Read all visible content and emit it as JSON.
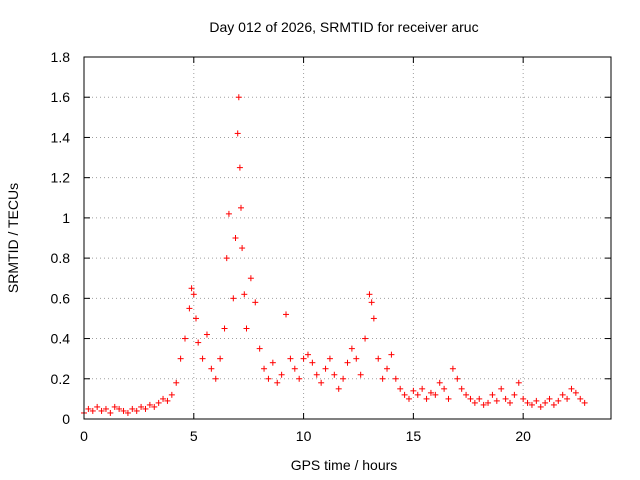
{
  "chart_data": {
    "type": "scatter",
    "title": "Day 012 of 2026, SRMTID for receiver aruc",
    "xlabel": "GPS time / hours",
    "ylabel": "SRMTID / TECUs",
    "xlim": [
      0,
      24
    ],
    "ylim": [
      0,
      1.8
    ],
    "xticks": [
      0,
      5,
      10,
      15,
      20
    ],
    "xtick_labels": [
      "0",
      "5",
      "10",
      "15",
      "20"
    ],
    "yticks": [
      0,
      0.2,
      0.4,
      0.6,
      0.8,
      1.0,
      1.2,
      1.4,
      1.6,
      1.8
    ],
    "ytick_labels": [
      "0",
      "0.2",
      "0.4",
      "0.6",
      "0.8",
      "1",
      "1.2",
      "1.4",
      "1.6",
      "1.8"
    ],
    "grid": true,
    "marker": "+",
    "color": "#ff0000",
    "series": [
      {
        "name": "SRMTID",
        "x": [
          0.0,
          0.2,
          0.4,
          0.6,
          0.8,
          1.0,
          1.2,
          1.4,
          1.6,
          1.8,
          2.0,
          2.2,
          2.4,
          2.6,
          2.8,
          3.0,
          3.2,
          3.4,
          3.6,
          3.8,
          4.0,
          4.2,
          4.4,
          4.6,
          4.8,
          4.9,
          5.0,
          5.1,
          5.2,
          5.4,
          5.6,
          5.8,
          6.0,
          6.2,
          6.4,
          6.5,
          6.6,
          6.8,
          6.9,
          7.0,
          7.05,
          7.1,
          7.15,
          7.2,
          7.3,
          7.4,
          7.6,
          7.8,
          8.0,
          8.2,
          8.4,
          8.6,
          8.8,
          9.0,
          9.2,
          9.4,
          9.6,
          9.8,
          10.0,
          10.2,
          10.4,
          10.6,
          10.8,
          11.0,
          11.2,
          11.4,
          11.6,
          11.8,
          12.0,
          12.2,
          12.4,
          12.6,
          12.8,
          13.0,
          13.1,
          13.2,
          13.4,
          13.6,
          13.8,
          14.0,
          14.2,
          14.4,
          14.6,
          14.8,
          15.0,
          15.2,
          15.4,
          15.6,
          15.8,
          16.0,
          16.2,
          16.4,
          16.6,
          16.8,
          17.0,
          17.2,
          17.4,
          17.6,
          17.8,
          18.0,
          18.2,
          18.4,
          18.6,
          18.8,
          19.0,
          19.2,
          19.4,
          19.6,
          19.8,
          20.0,
          20.2,
          20.4,
          20.6,
          20.8,
          21.0,
          21.2,
          21.4,
          21.6,
          21.8,
          22.0,
          22.2,
          22.4,
          22.6,
          22.8
        ],
        "y": [
          0.03,
          0.05,
          0.04,
          0.06,
          0.04,
          0.05,
          0.03,
          0.06,
          0.05,
          0.04,
          0.03,
          0.05,
          0.04,
          0.06,
          0.05,
          0.07,
          0.06,
          0.08,
          0.1,
          0.09,
          0.12,
          0.18,
          0.3,
          0.4,
          0.55,
          0.65,
          0.62,
          0.5,
          0.38,
          0.3,
          0.42,
          0.25,
          0.2,
          0.3,
          0.45,
          0.8,
          1.02,
          0.6,
          0.9,
          1.42,
          1.6,
          1.25,
          1.05,
          0.85,
          0.62,
          0.45,
          0.7,
          0.58,
          0.35,
          0.25,
          0.2,
          0.28,
          0.18,
          0.22,
          0.52,
          0.3,
          0.25,
          0.2,
          0.3,
          0.32,
          0.28,
          0.22,
          0.18,
          0.25,
          0.3,
          0.22,
          0.15,
          0.2,
          0.28,
          0.35,
          0.3,
          0.22,
          0.4,
          0.62,
          0.58,
          0.5,
          0.3,
          0.2,
          0.25,
          0.32,
          0.2,
          0.15,
          0.12,
          0.1,
          0.14,
          0.12,
          0.15,
          0.1,
          0.13,
          0.12,
          0.18,
          0.15,
          0.1,
          0.25,
          0.2,
          0.15,
          0.12,
          0.1,
          0.08,
          0.1,
          0.07,
          0.08,
          0.12,
          0.09,
          0.15,
          0.1,
          0.08,
          0.12,
          0.18,
          0.1,
          0.08,
          0.07,
          0.09,
          0.06,
          0.08,
          0.1,
          0.07,
          0.09,
          0.12,
          0.1,
          0.15,
          0.13,
          0.1,
          0.08
        ]
      }
    ]
  }
}
